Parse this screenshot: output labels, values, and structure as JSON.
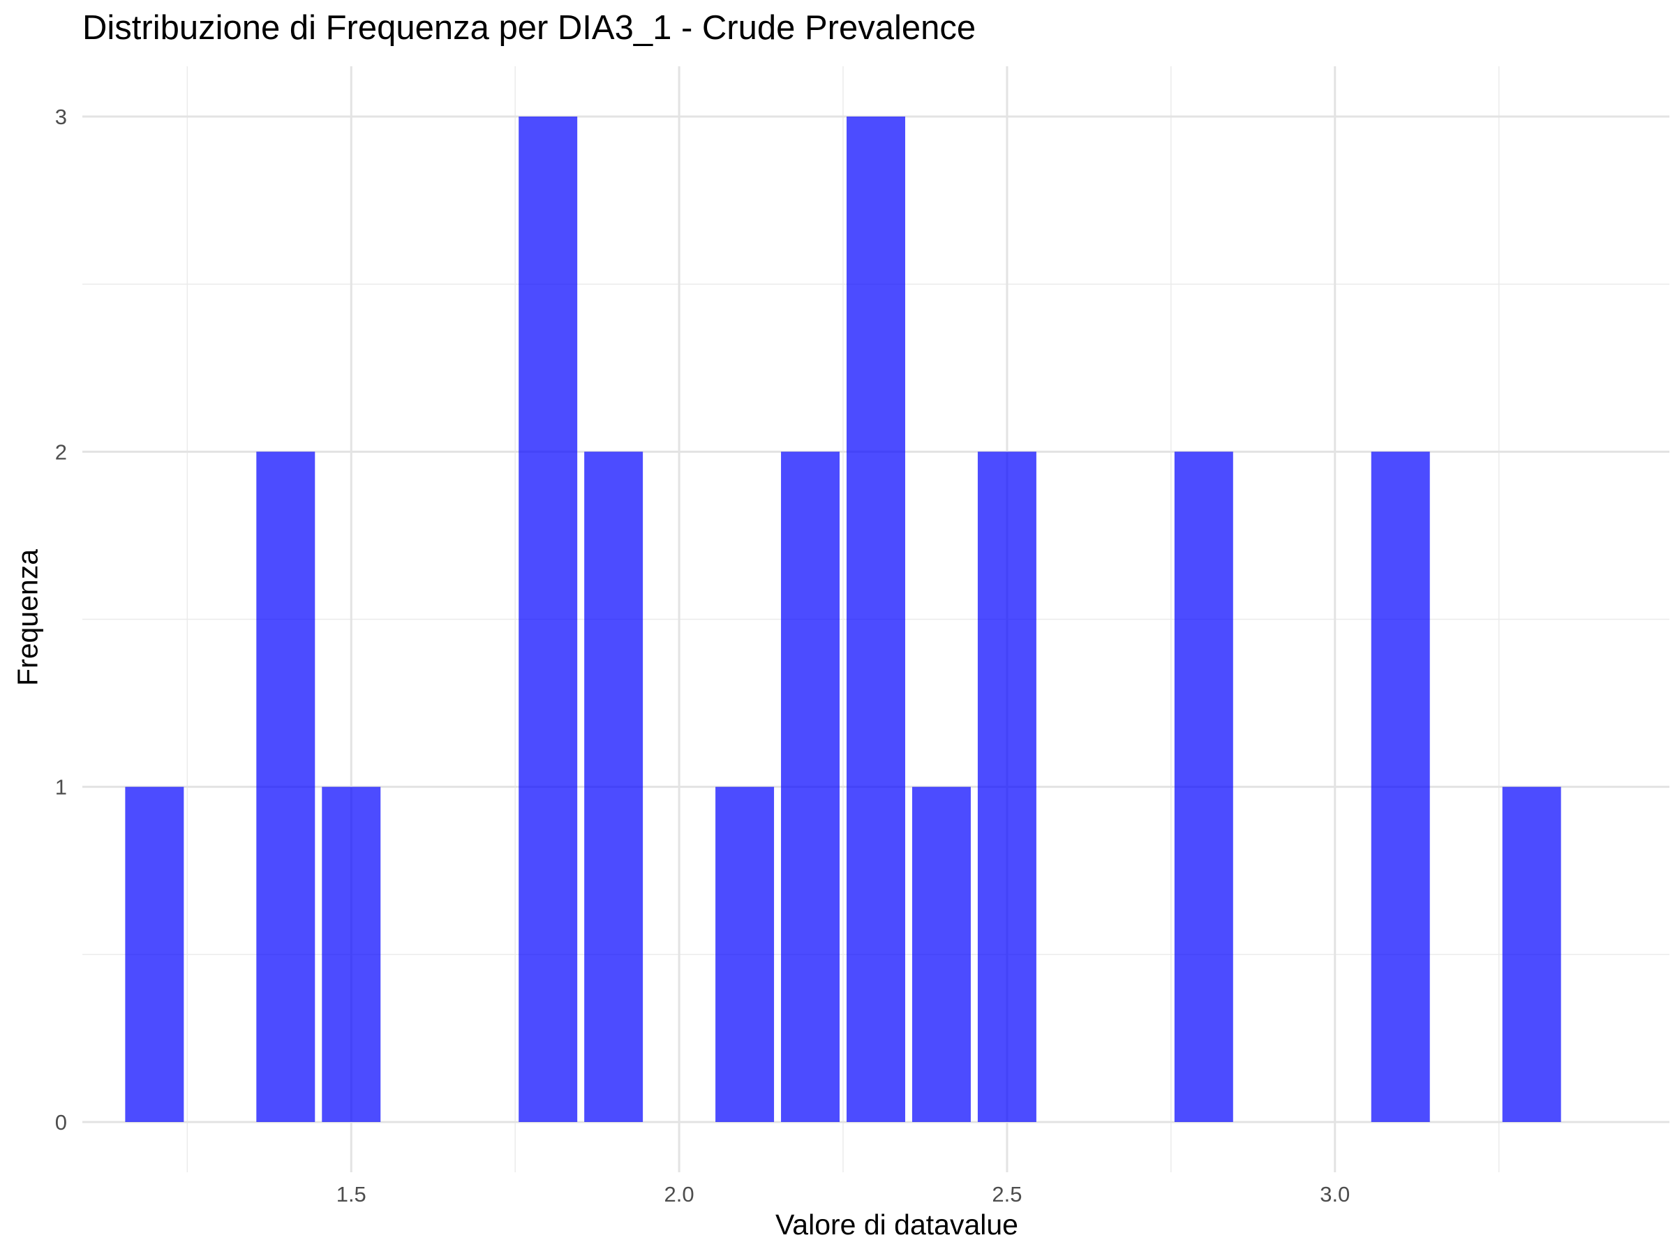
{
  "chart_data": {
    "type": "bar",
    "title": "Distribuzione di Frequenza per DIA3_1 - Crude Prevalence",
    "xlabel": "Valore di datavalue",
    "ylabel": "Frequenza",
    "bar_color": "#0000FF",
    "bar_opacity": 0.7,
    "grid": true,
    "xlim": [
      1.09,
      3.51
    ],
    "ylim": [
      -0.15,
      3.15
    ],
    "x_ticks": [
      1.5,
      2.0,
      2.5,
      3.0
    ],
    "x_tick_labels": [
      "1.5",
      "2.0",
      "2.5",
      "3.0"
    ],
    "y_ticks": [
      0,
      1,
      2,
      3
    ],
    "y_tick_labels": [
      "0",
      "1",
      "2",
      "3"
    ],
    "bin_width": 0.1,
    "bins": [
      {
        "x0": 1.15,
        "x1": 1.25,
        "count": 1
      },
      {
        "x0": 1.35,
        "x1": 1.45,
        "count": 2
      },
      {
        "x0": 1.45,
        "x1": 1.55,
        "count": 1
      },
      {
        "x0": 1.75,
        "x1": 1.85,
        "count": 3
      },
      {
        "x0": 1.85,
        "x1": 1.95,
        "count": 2
      },
      {
        "x0": 2.05,
        "x1": 2.15,
        "count": 1
      },
      {
        "x0": 2.15,
        "x1": 2.25,
        "count": 2
      },
      {
        "x0": 2.25,
        "x1": 2.35,
        "count": 3
      },
      {
        "x0": 2.35,
        "x1": 2.45,
        "count": 1
      },
      {
        "x0": 2.45,
        "x1": 2.55,
        "count": 2
      },
      {
        "x0": 2.75,
        "x1": 2.85,
        "count": 2
      },
      {
        "x0": 3.05,
        "x1": 3.15,
        "count": 2
      },
      {
        "x0": 3.25,
        "x1": 3.35,
        "count": 1
      }
    ]
  }
}
